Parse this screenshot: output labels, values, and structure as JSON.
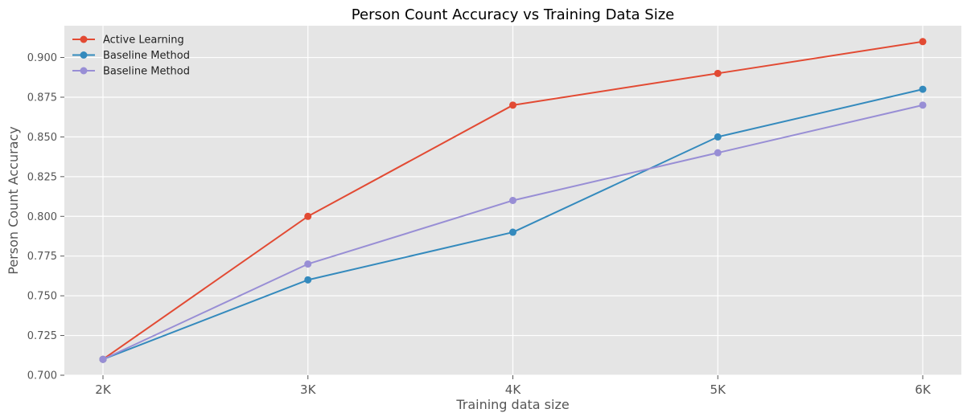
{
  "chart_data": {
    "type": "line",
    "title": "Person Count Accuracy vs Training Data Size",
    "xlabel": "Training data size",
    "ylabel": "Person Count Accuracy",
    "categories": [
      "2K",
      "3K",
      "4K",
      "5K",
      "6K"
    ],
    "ylim": [
      0.7,
      0.92
    ],
    "yticks": [
      "0.700",
      "0.725",
      "0.750",
      "0.775",
      "0.800",
      "0.825",
      "0.850",
      "0.875",
      "0.900"
    ],
    "grid": true,
    "legend_position": "top-left",
    "series": [
      {
        "name": "Active Learning",
        "color": "#E24A33",
        "values": [
          0.71,
          0.8,
          0.87,
          0.89,
          0.91
        ]
      },
      {
        "name": "Baseline Method",
        "color": "#348ABD",
        "values": [
          0.71,
          0.76,
          0.79,
          0.85,
          0.88
        ]
      },
      {
        "name": "Baseline Method",
        "color": "#988ED5",
        "values": [
          0.71,
          0.77,
          0.81,
          0.84,
          0.87
        ]
      }
    ],
    "colors": {
      "plot_background": "#E5E5E5",
      "grid": "#FFFFFF"
    }
  }
}
